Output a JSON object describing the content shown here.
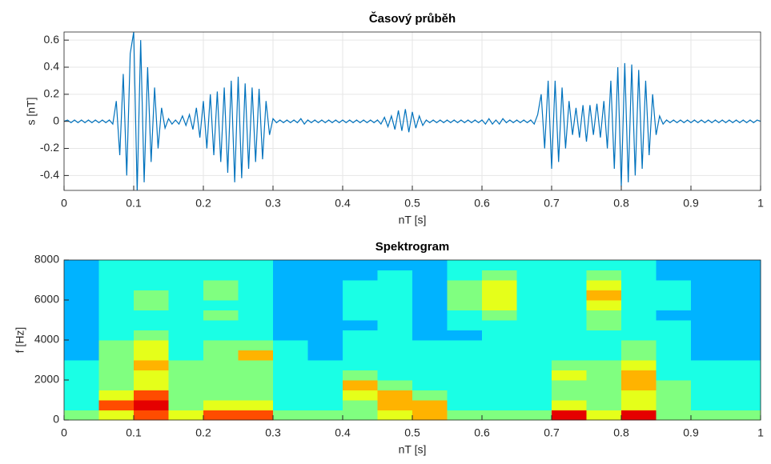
{
  "chart_data": [
    {
      "type": "line",
      "title": "Časový průběh",
      "xlabel": "nT [s]",
      "ylabel": "s [nT]",
      "color": "#0072bd",
      "grid": true,
      "xlim": [
        0,
        1
      ],
      "ylim": [
        -0.51,
        0.66
      ],
      "xticks": [
        0,
        0.1,
        0.2,
        0.3,
        0.4,
        0.5,
        0.6,
        0.7,
        0.8,
        0.9,
        1
      ],
      "yticks": [
        -0.4,
        -0.2,
        0,
        0.2,
        0.4,
        0.6
      ],
      "x": [
        0,
        0.005,
        0.01,
        0.015,
        0.02,
        0.025,
        0.03,
        0.035,
        0.04,
        0.045,
        0.05,
        0.055,
        0.06,
        0.065,
        0.07,
        0.075,
        0.08,
        0.085,
        0.09,
        0.095,
        0.1,
        0.105,
        0.11,
        0.115,
        0.12,
        0.125,
        0.13,
        0.135,
        0.14,
        0.145,
        0.15,
        0.155,
        0.16,
        0.165,
        0.17,
        0.175,
        0.18,
        0.185,
        0.19,
        0.195,
        0.2,
        0.205,
        0.21,
        0.215,
        0.22,
        0.225,
        0.23,
        0.235,
        0.24,
        0.245,
        0.25,
        0.255,
        0.26,
        0.265,
        0.27,
        0.275,
        0.28,
        0.285,
        0.29,
        0.295,
        0.3,
        0.305,
        0.31,
        0.315,
        0.32,
        0.325,
        0.33,
        0.335,
        0.34,
        0.345,
        0.35,
        0.355,
        0.36,
        0.365,
        0.37,
        0.375,
        0.38,
        0.385,
        0.39,
        0.395,
        0.4,
        0.405,
        0.41,
        0.415,
        0.42,
        0.425,
        0.43,
        0.435,
        0.44,
        0.445,
        0.45,
        0.455,
        0.46,
        0.465,
        0.47,
        0.475,
        0.48,
        0.485,
        0.49,
        0.495,
        0.5,
        0.505,
        0.51,
        0.515,
        0.52,
        0.525,
        0.53,
        0.535,
        0.54,
        0.545,
        0.55,
        0.555,
        0.56,
        0.565,
        0.57,
        0.575,
        0.58,
        0.585,
        0.59,
        0.595,
        0.6,
        0.605,
        0.61,
        0.615,
        0.62,
        0.625,
        0.63,
        0.635,
        0.64,
        0.645,
        0.65,
        0.655,
        0.66,
        0.665,
        0.67,
        0.675,
        0.68,
        0.685,
        0.69,
        0.695,
        0.7,
        0.705,
        0.71,
        0.715,
        0.72,
        0.725,
        0.73,
        0.735,
        0.74,
        0.745,
        0.75,
        0.755,
        0.76,
        0.765,
        0.77,
        0.775,
        0.78,
        0.785,
        0.79,
        0.795,
        0.8,
        0.805,
        0.81,
        0.815,
        0.82,
        0.825,
        0.83,
        0.835,
        0.84,
        0.845,
        0.85,
        0.855,
        0.86,
        0.865,
        0.87,
        0.875,
        0.88,
        0.885,
        0.89,
        0.895,
        0.9,
        0.905,
        0.91,
        0.915,
        0.92,
        0.925,
        0.93,
        0.935,
        0.94,
        0.945,
        0.95,
        0.955,
        0.96,
        0.965,
        0.97,
        0.975,
        0.98,
        0.985,
        0.99,
        0.995,
        1
      ],
      "values": [
        0,
        0.01,
        -0.01,
        0.01,
        -0.01,
        0.01,
        -0.01,
        0.01,
        -0.01,
        0.01,
        -0.01,
        0.01,
        -0.01,
        0.01,
        -0.02,
        0.15,
        -0.25,
        0.35,
        -0.4,
        0.5,
        0.66,
        -0.52,
        0.6,
        -0.45,
        0.4,
        -0.3,
        0.25,
        -0.2,
        0.1,
        -0.05,
        0.02,
        -0.02,
        0.01,
        -0.02,
        0.04,
        -0.03,
        0.05,
        -0.06,
        0.1,
        -0.12,
        0.15,
        -0.2,
        0.2,
        -0.25,
        0.22,
        -0.3,
        0.25,
        -0.38,
        0.3,
        -0.45,
        0.33,
        -0.42,
        0.28,
        -0.35,
        0.25,
        -0.3,
        0.24,
        -0.28,
        0.15,
        -0.1,
        0.02,
        -0.01,
        0.01,
        -0.01,
        0.01,
        -0.01,
        0.01,
        -0.01,
        0.02,
        -0.02,
        0.01,
        -0.01,
        0.01,
        -0.01,
        0.01,
        -0.01,
        0.01,
        -0.01,
        0.01,
        -0.01,
        0.01,
        -0.01,
        0.01,
        -0.01,
        0.01,
        -0.01,
        0.01,
        -0.01,
        0.01,
        -0.01,
        0.01,
        -0.02,
        0.03,
        -0.04,
        0.04,
        -0.06,
        0.08,
        -0.07,
        0.09,
        -0.08,
        0.07,
        -0.05,
        0.04,
        -0.03,
        0.01,
        -0.01,
        0.01,
        -0.01,
        0.01,
        -0.01,
        0.01,
        -0.01,
        0.01,
        -0.01,
        0.01,
        -0.01,
        0.01,
        -0.01,
        0.01,
        -0.01,
        0.01,
        -0.02,
        0.02,
        -0.02,
        0.01,
        -0.02,
        0.02,
        -0.01,
        0.01,
        -0.01,
        0.01,
        -0.01,
        0.01,
        -0.01,
        0.01,
        -0.02,
        0.05,
        0.2,
        -0.2,
        0.3,
        -0.35,
        0.3,
        -0.3,
        0.25,
        -0.2,
        0.15,
        -0.1,
        0.1,
        -0.12,
        0.12,
        -0.15,
        0.12,
        -0.1,
        0.13,
        -0.12,
        0.15,
        -0.2,
        0.3,
        -0.35,
        0.4,
        -0.48,
        0.43,
        -0.45,
        0.42,
        -0.4,
        0.38,
        -0.35,
        0.3,
        -0.25,
        0.2,
        -0.1,
        0.04,
        -0.02,
        0.01,
        -0.01,
        0.01,
        -0.01,
        0.01,
        -0.01,
        0.01,
        -0.01,
        0.01,
        -0.01,
        0.01,
        -0.01,
        0.01,
        -0.01,
        0.01,
        -0.01,
        0.01,
        -0.01,
        0.01,
        -0.01,
        0.01,
        -0.01,
        0.01,
        -0.01,
        0.01,
        -0.01,
        0.01,
        0
      ]
    },
    {
      "type": "heatmap",
      "title": "Spektrogram",
      "xlabel": "nT [s]",
      "ylabel": "f [Hz]",
      "colormap": "jet",
      "zlim": [
        0,
        10
      ],
      "xlim": [
        0,
        1
      ],
      "ylim": [
        0,
        8000
      ],
      "xticks": [
        0,
        0.1,
        0.2,
        0.3,
        0.4,
        0.5,
        0.6,
        0.7,
        0.8,
        0.9,
        1
      ],
      "yticks": [
        0,
        2000,
        4000,
        6000,
        8000
      ],
      "xbins": [
        0,
        0.05,
        0.1,
        0.15,
        0.2,
        0.25,
        0.3,
        0.35,
        0.4,
        0.45,
        0.5,
        0.55,
        0.6,
        0.65,
        0.7,
        0.75,
        0.8,
        0.85,
        0.9,
        0.95,
        1
      ],
      "ybins": [
        0,
        500,
        1000,
        1500,
        2000,
        2500,
        3000,
        3500,
        4000,
        4500,
        5000,
        5500,
        6000,
        6500,
        7000,
        7500,
        8000
      ],
      "values": [
        [
          5,
          6,
          8,
          6,
          8,
          8,
          5,
          5,
          5,
          6,
          7,
          5,
          5,
          5,
          9,
          6,
          9,
          5,
          5,
          5
        ],
        [
          4,
          8,
          9,
          5,
          6,
          6,
          4,
          4,
          5,
          7,
          7,
          4,
          4,
          4,
          6,
          5,
          6,
          5,
          4,
          4
        ],
        [
          4,
          6,
          8,
          5,
          5,
          5,
          4,
          4,
          6,
          7,
          5,
          4,
          4,
          4,
          5,
          5,
          6,
          5,
          4,
          4
        ],
        [
          4,
          5,
          6,
          5,
          5,
          5,
          4,
          4,
          7,
          5,
          4,
          4,
          4,
          4,
          5,
          5,
          7,
          5,
          4,
          4
        ],
        [
          4,
          5,
          6,
          5,
          5,
          5,
          4,
          4,
          5,
          4,
          4,
          4,
          4,
          4,
          6,
          5,
          7,
          4,
          4,
          4
        ],
        [
          4,
          5,
          7,
          5,
          5,
          5,
          4,
          4,
          4,
          4,
          4,
          4,
          4,
          4,
          5,
          5,
          6,
          4,
          4,
          4
        ],
        [
          3,
          5,
          6,
          4,
          5,
          7,
          4,
          3,
          4,
          4,
          4,
          4,
          4,
          4,
          4,
          4,
          5,
          4,
          3,
          3
        ],
        [
          3,
          5,
          6,
          4,
          5,
          5,
          4,
          3,
          4,
          4,
          4,
          4,
          4,
          4,
          4,
          4,
          5,
          4,
          3,
          3
        ],
        [
          3,
          4,
          5,
          4,
          4,
          4,
          3,
          3,
          4,
          4,
          3,
          3,
          4,
          4,
          4,
          4,
          4,
          4,
          3,
          3
        ],
        [
          3,
          4,
          4,
          4,
          4,
          4,
          3,
          3,
          3,
          4,
          3,
          4,
          4,
          4,
          4,
          5,
          4,
          4,
          3,
          3
        ],
        [
          3,
          4,
          4,
          4,
          5,
          4,
          3,
          3,
          4,
          4,
          3,
          4,
          5,
          4,
          4,
          5,
          4,
          3,
          3,
          3
        ],
        [
          3,
          4,
          5,
          4,
          4,
          4,
          3,
          3,
          4,
          4,
          3,
          5,
          6,
          4,
          4,
          6,
          4,
          4,
          3,
          3
        ],
        [
          3,
          4,
          5,
          4,
          5,
          4,
          3,
          3,
          4,
          4,
          3,
          5,
          6,
          4,
          4,
          7,
          4,
          4,
          3,
          3
        ],
        [
          3,
          4,
          4,
          4,
          5,
          4,
          3,
          3,
          4,
          4,
          3,
          5,
          6,
          4,
          4,
          6,
          4,
          4,
          3,
          3
        ],
        [
          3,
          4,
          4,
          4,
          4,
          4,
          3,
          3,
          3,
          4,
          3,
          4,
          5,
          4,
          4,
          5,
          4,
          3,
          3,
          3
        ],
        [
          3,
          4,
          4,
          4,
          4,
          4,
          3,
          3,
          3,
          3,
          3,
          4,
          4,
          4,
          4,
          4,
          4,
          3,
          3,
          3
        ]
      ]
    }
  ]
}
